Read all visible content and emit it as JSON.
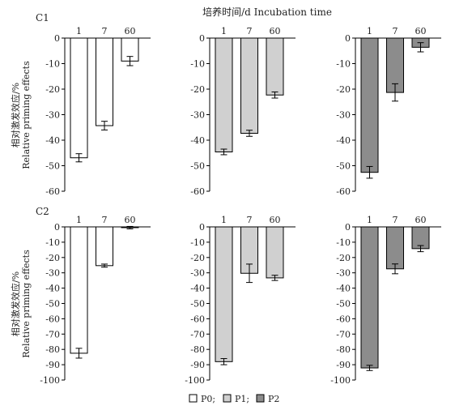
{
  "title": "培养时间/d  Incubation time",
  "ylabel_cn": "相对激发效应/%",
  "ylabel_en": "Relative priming effects",
  "rows": [
    {
      "label": "C1",
      "ylim": [
        -60,
        0
      ],
      "ticks": [
        0,
        -10,
        -20,
        -30,
        -40,
        -50,
        -60
      ]
    },
    {
      "label": "C2",
      "ylim": [
        -100,
        0
      ],
      "ticks": [
        0,
        -10,
        -20,
        -30,
        -40,
        -50,
        -60,
        -70,
        -80,
        -90,
        -100
      ]
    }
  ],
  "legend": [
    {
      "marker": "□",
      "label": "P0;",
      "color": "#ffffff"
    },
    {
      "marker": "□",
      "label": "P1;",
      "color": "#d0d0d0"
    },
    {
      "marker": "■",
      "label": "P2",
      "color": "#8c8c8c"
    }
  ],
  "chart_data": [
    {
      "type": "bar",
      "row": "C1",
      "series_name": "P0",
      "color": "#ffffff",
      "categories": [
        "1",
        "7",
        "60"
      ],
      "values": [
        -46.9,
        -34.3,
        -9.0
      ],
      "errors": [
        1.6,
        1.7,
        1.8
      ],
      "ylim": [
        -60,
        0
      ]
    },
    {
      "type": "bar",
      "row": "C1",
      "series_name": "P1",
      "color": "#d0d0d0",
      "categories": [
        "1",
        "7",
        "60"
      ],
      "values": [
        -44.6,
        -37.3,
        -22.3
      ],
      "errors": [
        1.1,
        1.2,
        1.2
      ],
      "ylim": [
        -60,
        0
      ]
    },
    {
      "type": "bar",
      "row": "C1",
      "series_name": "P2",
      "color": "#8c8c8c",
      "categories": [
        "1",
        "7",
        "60"
      ],
      "values": [
        -52.6,
        -21.3,
        -3.6
      ],
      "errors": [
        2.3,
        3.4,
        1.8
      ],
      "ylim": [
        -60,
        0
      ]
    },
    {
      "type": "bar",
      "row": "C2",
      "series_name": "P0",
      "color": "#ffffff",
      "categories": [
        "1",
        "7",
        "60"
      ],
      "values": [
        -82.5,
        -25.3,
        -0.5
      ],
      "errors": [
        3.2,
        1.0,
        0.8
      ],
      "ylim": [
        -100,
        0
      ]
    },
    {
      "type": "bar",
      "row": "C2",
      "series_name": "P1",
      "color": "#d0d0d0",
      "categories": [
        "1",
        "7",
        "60"
      ],
      "values": [
        -88.0,
        -30.3,
        -33.3
      ],
      "errors": [
        2.0,
        6.0,
        1.7
      ],
      "ylim": [
        -100,
        0
      ]
    },
    {
      "type": "bar",
      "row": "C2",
      "series_name": "P2",
      "color": "#8c8c8c",
      "categories": [
        "1",
        "7",
        "60"
      ],
      "values": [
        -92.1,
        -27.4,
        -14.2
      ],
      "errors": [
        1.7,
        3.2,
        2.0
      ],
      "ylim": [
        -100,
        0
      ]
    }
  ]
}
